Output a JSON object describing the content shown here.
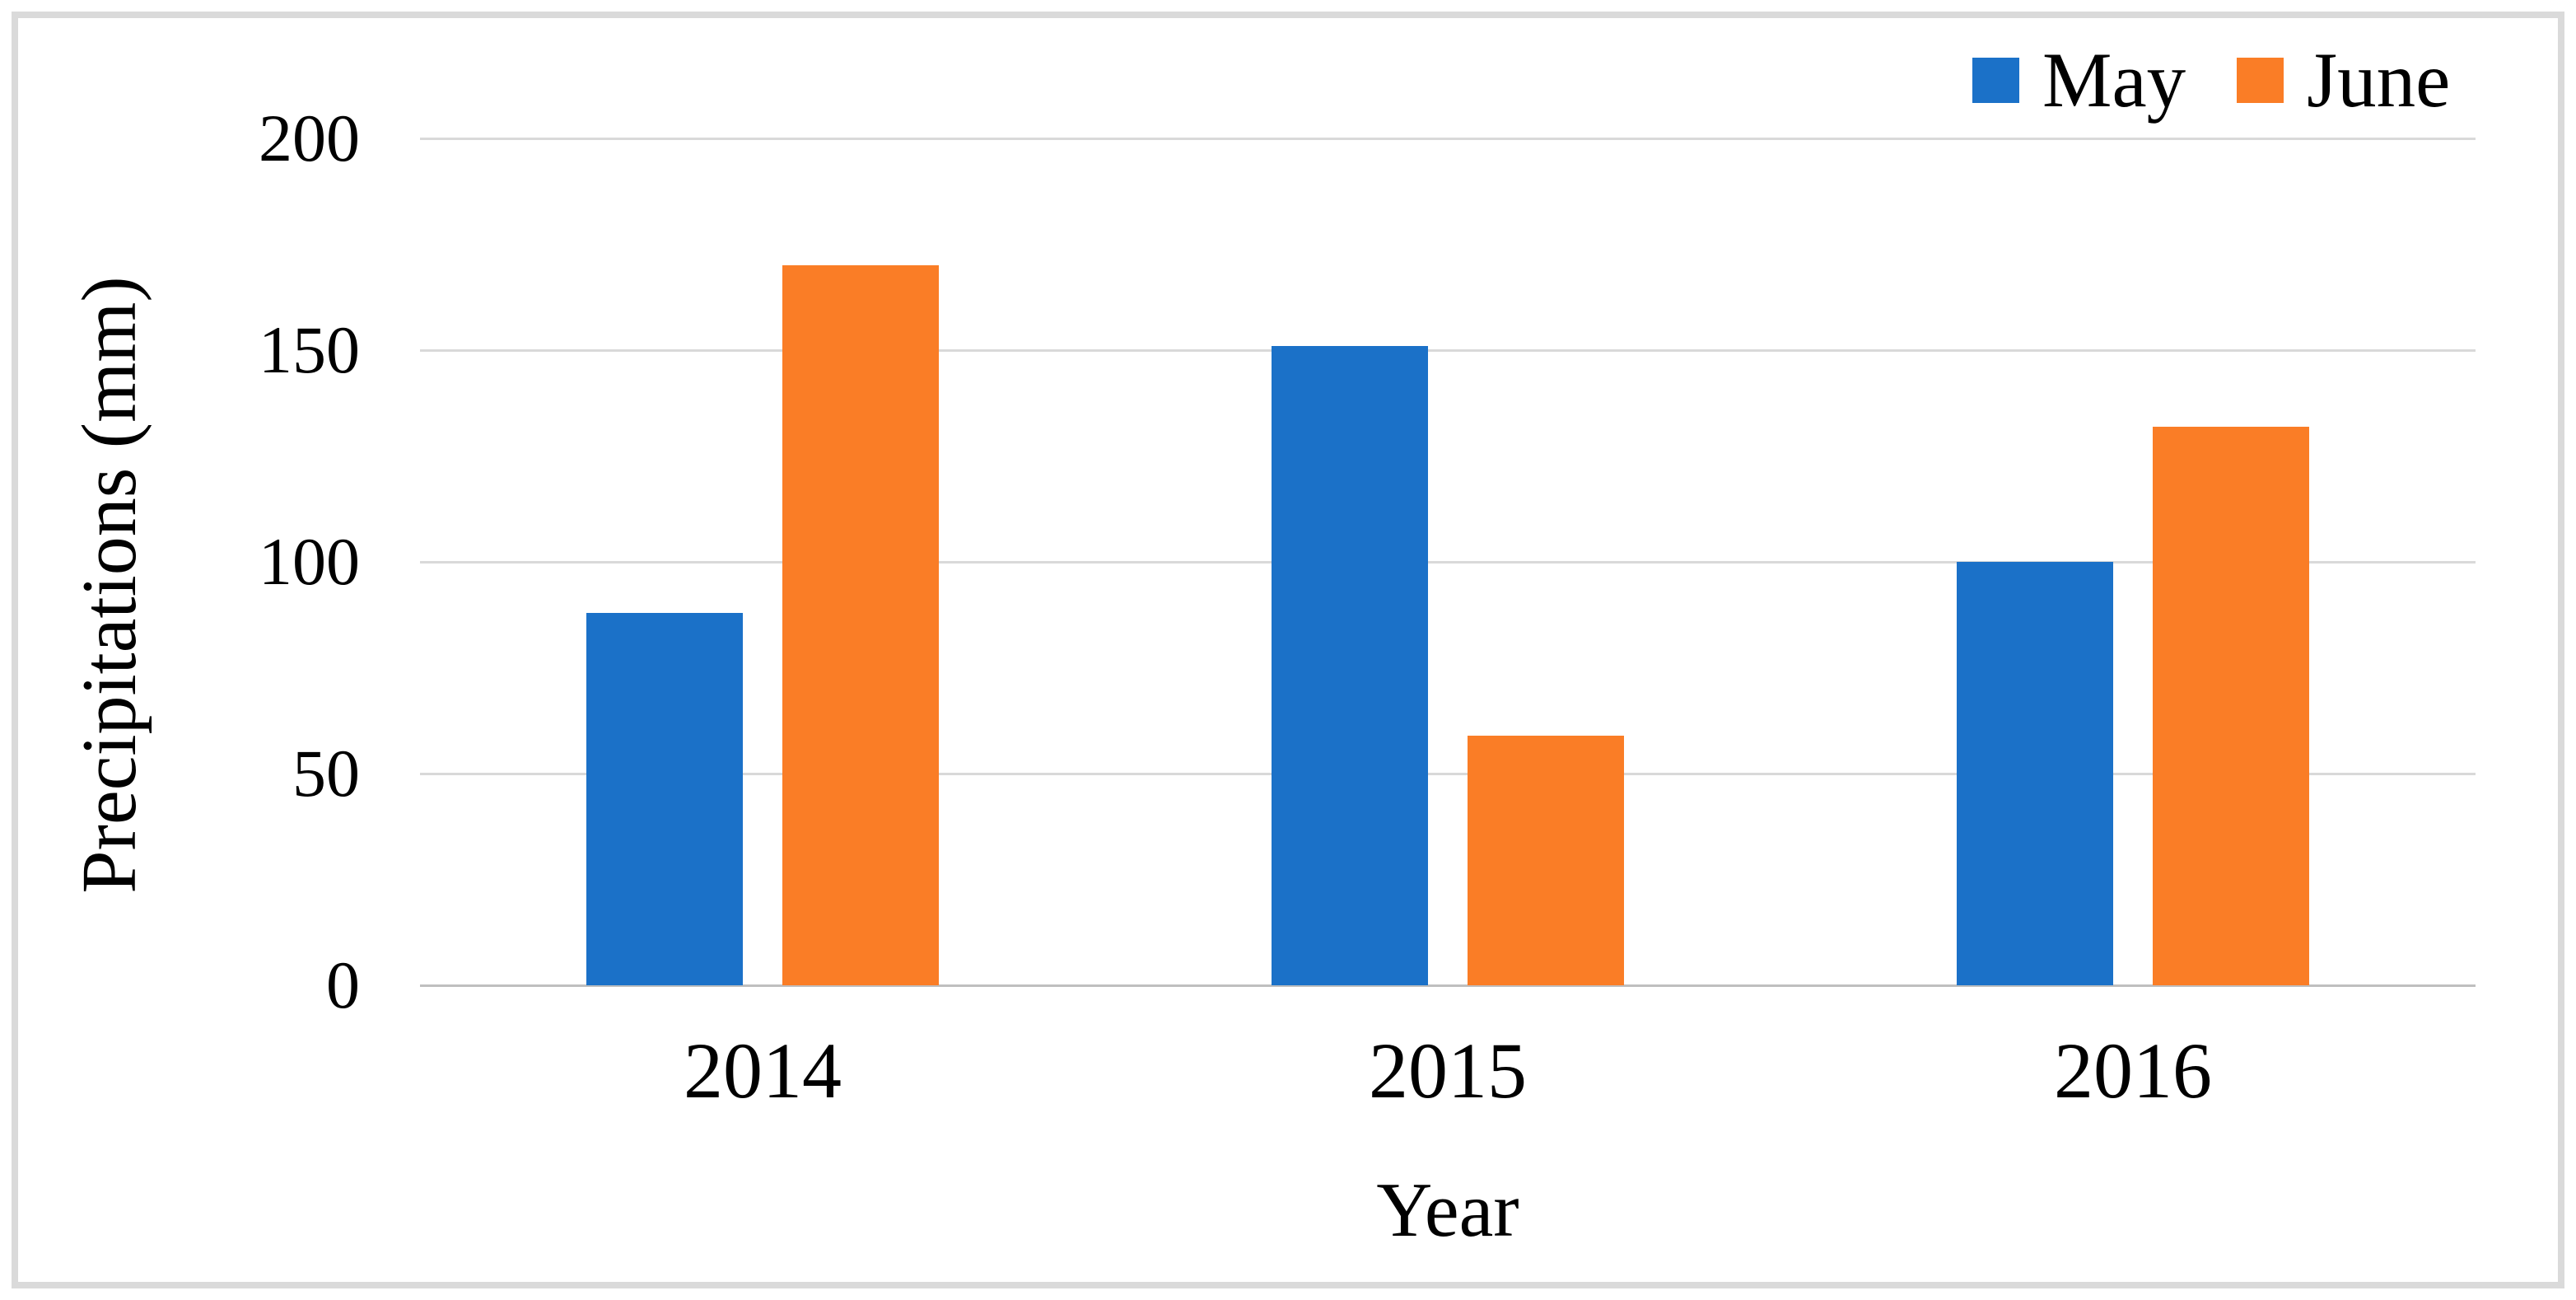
{
  "figure": {
    "background_color": "#ffffff",
    "frame_color": "#dadada"
  },
  "chart_data": {
    "type": "bar",
    "title": "",
    "categories": [
      "2014",
      "2015",
      "2016"
    ],
    "series": [
      {
        "name": "May",
        "color": "#1b71c8",
        "values": [
          88,
          151,
          100
        ]
      },
      {
        "name": "June",
        "color": "#fa7d26",
        "values": [
          170,
          59,
          132
        ]
      }
    ],
    "xlabel": "Year",
    "ylabel": "Precipitations (mm)",
    "ylim": [
      0,
      200
    ],
    "yticks": [
      0,
      50,
      100,
      150,
      200
    ],
    "grid": "horizontal",
    "gridline_color": "#d9d9d9",
    "axisline_color": "#bfbfbf",
    "text_color": "#000000",
    "legend_position": "top-right"
  }
}
